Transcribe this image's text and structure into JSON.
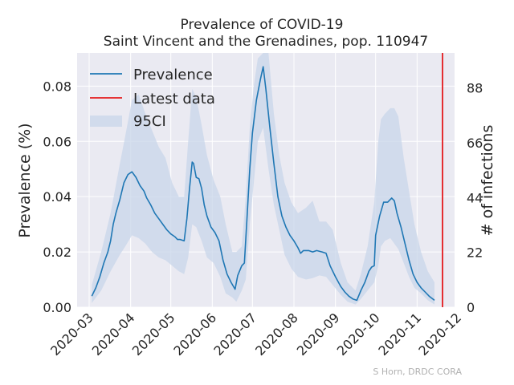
{
  "chart_data": {
    "type": "line",
    "title": "Prevalence of COVID-19",
    "subtitle": "Saint Vincent and the Grenadines, pop. 110947",
    "xlabel": "",
    "ylabel": "Prevalence (%)",
    "y2label": "# of infections",
    "credit": "S Horn, DRDC CORA",
    "xlim": [
      "2020-02-21",
      "2020-11-29"
    ],
    "ylim": [
      0,
      0.092
    ],
    "y2lim": [
      0,
      102
    ],
    "x_ticks": [
      "2020-03",
      "2020-04",
      "2020-05",
      "2020-06",
      "2020-07",
      "2020-08",
      "2020-09",
      "2020-10",
      "2020-11",
      "2020-12"
    ],
    "y_ticks": [
      "0.00",
      "0.02",
      "0.04",
      "0.06",
      "0.08"
    ],
    "y2_ticks": [
      "0",
      "22",
      "44",
      "66",
      "88"
    ],
    "grid": true,
    "legend_position": "top-left",
    "colors": {
      "prevalence": "#1f77b4",
      "latest": "#e41a1c",
      "ci": "#c8d6ea",
      "background": "#eaeaf2"
    },
    "legend": [
      {
        "label": "Prevalence",
        "kind": "line"
      },
      {
        "label": "Latest data",
        "kind": "vline"
      },
      {
        "label": "95CI",
        "kind": "band"
      }
    ],
    "latest_data_date": "2020-11-20",
    "series": [
      {
        "name": "Prevalence",
        "points": [
          [
            "2020-03-03",
            0.004
          ],
          [
            "2020-03-06",
            0.007
          ],
          [
            "2020-03-09",
            0.011
          ],
          [
            "2020-03-12",
            0.016
          ],
          [
            "2020-03-15",
            0.02
          ],
          [
            "2020-03-17",
            0.024
          ],
          [
            "2020-03-19",
            0.03
          ],
          [
            "2020-03-21",
            0.034
          ],
          [
            "2020-03-24",
            0.039
          ],
          [
            "2020-03-27",
            0.045
          ],
          [
            "2020-03-30",
            0.048
          ],
          [
            "2020-04-02",
            0.049
          ],
          [
            "2020-04-05",
            0.047
          ],
          [
            "2020-04-08",
            0.044
          ],
          [
            "2020-04-11",
            0.042
          ],
          [
            "2020-04-13",
            0.0395
          ],
          [
            "2020-04-16",
            0.037
          ],
          [
            "2020-04-19",
            0.034
          ],
          [
            "2020-04-22",
            0.032
          ],
          [
            "2020-04-25",
            0.03
          ],
          [
            "2020-04-28",
            0.028
          ],
          [
            "2020-05-01",
            0.0265
          ],
          [
            "2020-05-04",
            0.0255
          ],
          [
            "2020-05-06",
            0.0245
          ],
          [
            "2020-05-08",
            0.0245
          ],
          [
            "2020-05-11",
            0.024
          ],
          [
            "2020-05-13",
            0.032
          ],
          [
            "2020-05-15",
            0.043
          ],
          [
            "2020-05-17",
            0.0525
          ],
          [
            "2020-05-18",
            0.052
          ],
          [
            "2020-05-20",
            0.047
          ],
          [
            "2020-05-22",
            0.0465
          ],
          [
            "2020-05-24",
            0.043
          ],
          [
            "2020-05-26",
            0.037
          ],
          [
            "2020-05-28",
            0.033
          ],
          [
            "2020-05-31",
            0.029
          ],
          [
            "2020-06-03",
            0.027
          ],
          [
            "2020-06-06",
            0.024
          ],
          [
            "2020-06-09",
            0.017
          ],
          [
            "2020-06-12",
            0.012
          ],
          [
            "2020-06-15",
            0.009
          ],
          [
            "2020-06-18",
            0.0065
          ],
          [
            "2020-06-20",
            0.0115
          ],
          [
            "2020-06-23",
            0.015
          ],
          [
            "2020-06-25",
            0.016
          ],
          [
            "2020-06-27",
            0.033
          ],
          [
            "2020-06-29",
            0.05
          ],
          [
            "2020-07-01",
            0.063
          ],
          [
            "2020-07-04",
            0.075
          ],
          [
            "2020-07-07",
            0.0825
          ],
          [
            "2020-07-09",
            0.087
          ],
          [
            "2020-07-11",
            0.079
          ],
          [
            "2020-07-14",
            0.065
          ],
          [
            "2020-07-17",
            0.052
          ],
          [
            "2020-07-20",
            0.04
          ],
          [
            "2020-07-23",
            0.033
          ],
          [
            "2020-07-26",
            0.029
          ],
          [
            "2020-07-29",
            0.026
          ],
          [
            "2020-08-01",
            0.024
          ],
          [
            "2020-08-04",
            0.0215
          ],
          [
            "2020-08-06",
            0.0195
          ],
          [
            "2020-08-08",
            0.0205
          ],
          [
            "2020-08-12",
            0.0205
          ],
          [
            "2020-08-15",
            0.02
          ],
          [
            "2020-08-18",
            0.0205
          ],
          [
            "2020-08-22",
            0.02
          ],
          [
            "2020-08-25",
            0.0195
          ],
          [
            "2020-08-28",
            0.015
          ],
          [
            "2020-09-01",
            0.011
          ],
          [
            "2020-09-05",
            0.0075
          ],
          [
            "2020-09-08",
            0.0055
          ],
          [
            "2020-09-11",
            0.004
          ],
          [
            "2020-09-14",
            0.003
          ],
          [
            "2020-09-17",
            0.0025
          ],
          [
            "2020-09-20",
            0.006
          ],
          [
            "2020-09-23",
            0.009
          ],
          [
            "2020-09-26",
            0.013
          ],
          [
            "2020-09-28",
            0.0145
          ],
          [
            "2020-09-30",
            0.015
          ],
          [
            "2020-10-01",
            0.026
          ],
          [
            "2020-10-04",
            0.033
          ],
          [
            "2020-10-07",
            0.038
          ],
          [
            "2020-10-10",
            0.038
          ],
          [
            "2020-10-13",
            0.0395
          ],
          [
            "2020-10-15",
            0.0385
          ],
          [
            "2020-10-17",
            0.034
          ],
          [
            "2020-10-20",
            0.029
          ],
          [
            "2020-10-23",
            0.023
          ],
          [
            "2020-10-26",
            0.017
          ],
          [
            "2020-10-29",
            0.012
          ],
          [
            "2020-11-01",
            0.009
          ],
          [
            "2020-11-04",
            0.007
          ],
          [
            "2020-11-07",
            0.0055
          ],
          [
            "2020-11-10",
            0.004
          ],
          [
            "2020-11-14",
            0.0025
          ]
        ]
      },
      {
        "name": "95CI",
        "band": [
          [
            "2020-03-03",
            0.0015,
            0.008
          ],
          [
            "2020-03-10",
            0.006,
            0.02
          ],
          [
            "2020-03-17",
            0.013,
            0.034
          ],
          [
            "2020-03-24",
            0.019,
            0.052
          ],
          [
            "2020-03-28",
            0.022,
            0.062
          ],
          [
            "2020-04-02",
            0.026,
            0.075
          ],
          [
            "2020-04-07",
            0.025,
            0.077
          ],
          [
            "2020-04-12",
            0.023,
            0.07
          ],
          [
            "2020-04-17",
            0.02,
            0.064
          ],
          [
            "2020-04-22",
            0.018,
            0.058
          ],
          [
            "2020-04-27",
            0.017,
            0.054
          ],
          [
            "2020-05-02",
            0.015,
            0.045
          ],
          [
            "2020-05-07",
            0.013,
            0.04
          ],
          [
            "2020-05-11",
            0.012,
            0.04
          ],
          [
            "2020-05-14",
            0.018,
            0.06
          ],
          [
            "2020-05-17",
            0.03,
            0.079
          ],
          [
            "2020-05-20",
            0.029,
            0.076
          ],
          [
            "2020-05-24",
            0.024,
            0.066
          ],
          [
            "2020-05-28",
            0.018,
            0.055
          ],
          [
            "2020-06-02",
            0.016,
            0.046
          ],
          [
            "2020-06-07",
            0.011,
            0.04
          ],
          [
            "2020-06-11",
            0.005,
            0.03
          ],
          [
            "2020-06-16",
            0.0035,
            0.02
          ],
          [
            "2020-06-19",
            0.002,
            0.02
          ],
          [
            "2020-06-23",
            0.006,
            0.022
          ],
          [
            "2020-06-26",
            0.01,
            0.04
          ],
          [
            "2020-06-29",
            0.03,
            0.065
          ],
          [
            "2020-07-02",
            0.045,
            0.08
          ],
          [
            "2020-07-05",
            0.06,
            0.09
          ],
          [
            "2020-07-09",
            0.065,
            0.092
          ],
          [
            "2020-07-13",
            0.05,
            0.092
          ],
          [
            "2020-07-17",
            0.037,
            0.07
          ],
          [
            "2020-07-21",
            0.028,
            0.055
          ],
          [
            "2020-07-25",
            0.019,
            0.045
          ],
          [
            "2020-07-30",
            0.014,
            0.038
          ],
          [
            "2020-08-04",
            0.011,
            0.034
          ],
          [
            "2020-08-10",
            0.01,
            0.036
          ],
          [
            "2020-08-15",
            0.0105,
            0.0385
          ],
          [
            "2020-08-20",
            0.0115,
            0.031
          ],
          [
            "2020-08-25",
            0.011,
            0.031
          ],
          [
            "2020-08-30",
            0.008,
            0.028
          ],
          [
            "2020-09-05",
            0.0045,
            0.016
          ],
          [
            "2020-09-10",
            0.002,
            0.009
          ],
          [
            "2020-09-16",
            0.001,
            0.006
          ],
          [
            "2020-09-20",
            0.003,
            0.012
          ],
          [
            "2020-09-25",
            0.006,
            0.022
          ],
          [
            "2020-09-30",
            0.009,
            0.038
          ],
          [
            "2020-10-03",
            0.015,
            0.06
          ],
          [
            "2020-10-05",
            0.022,
            0.068
          ],
          [
            "2020-10-08",
            0.024,
            0.07
          ],
          [
            "2020-10-12",
            0.025,
            0.072
          ],
          [
            "2020-10-15",
            0.023,
            0.072
          ],
          [
            "2020-10-18",
            0.021,
            0.069
          ],
          [
            "2020-10-22",
            0.016,
            0.054
          ],
          [
            "2020-10-26",
            0.011,
            0.042
          ],
          [
            "2020-10-30",
            0.007,
            0.03
          ],
          [
            "2020-11-04",
            0.005,
            0.02
          ],
          [
            "2020-11-09",
            0.0025,
            0.013
          ],
          [
            "2020-11-14",
            0.001,
            0.009
          ]
        ]
      }
    ]
  }
}
